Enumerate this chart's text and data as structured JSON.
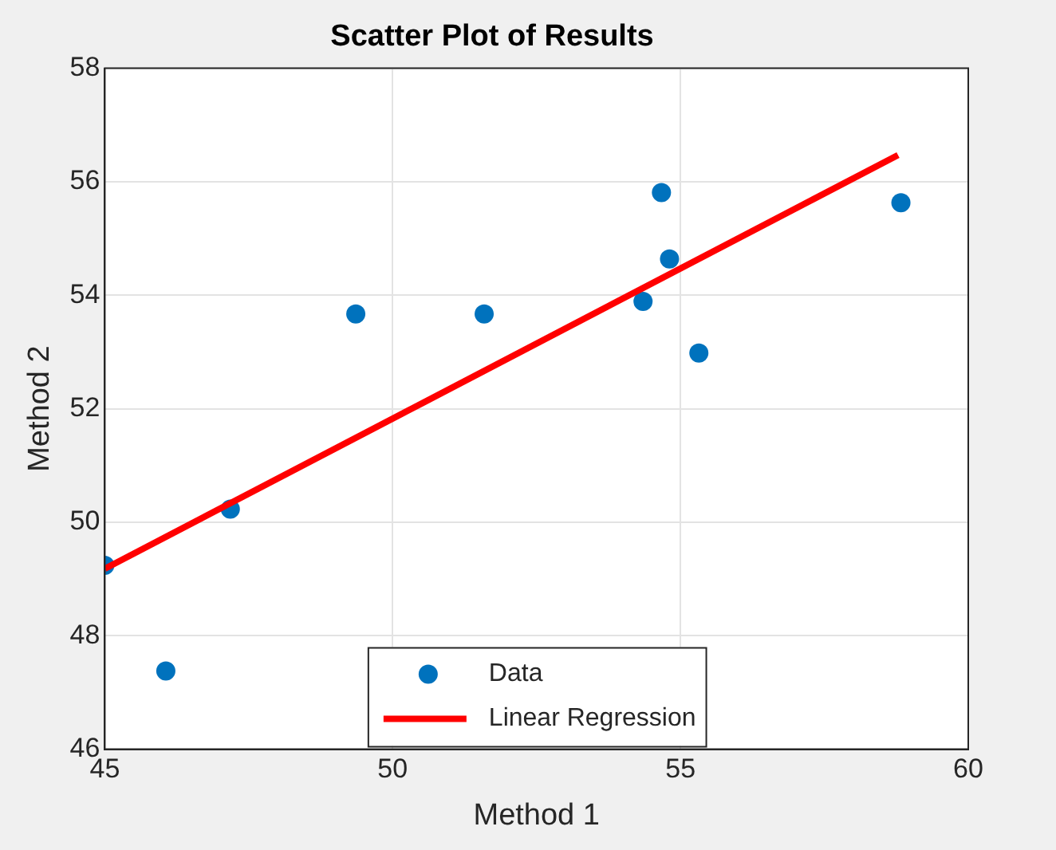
{
  "chart_data": {
    "type": "scatter",
    "title": "Scatter Plot of Results",
    "xlabel": "Method 1",
    "ylabel": "Method 2",
    "xlim": [
      45,
      60
    ],
    "xticks": [
      45,
      50,
      55,
      60
    ],
    "ylim": [
      46,
      58
    ],
    "yticks": [
      46,
      48,
      50,
      52,
      54,
      56,
      58
    ],
    "grid": true,
    "legend": "bottom",
    "series": [
      {
        "name": "Data",
        "type": "scatter",
        "marker": "circle",
        "color": "#0072bd",
        "x": [
          45,
          46.06,
          47.18,
          49.36,
          51.59,
          54.35,
          54.67,
          54.81,
          55.32,
          58.83
        ],
        "values": [
          49.24,
          47.38,
          50.23,
          53.67,
          53.67,
          53.89,
          55.81,
          54.64,
          52.98,
          55.63
        ]
      },
      {
        "name": "Linear Regression",
        "type": "line",
        "marker": "none",
        "color": "#ff0000",
        "line_style": "solid",
        "x": [
          45,
          58.78
        ],
        "values": [
          49.18,
          56.47
        ]
      }
    ]
  }
}
